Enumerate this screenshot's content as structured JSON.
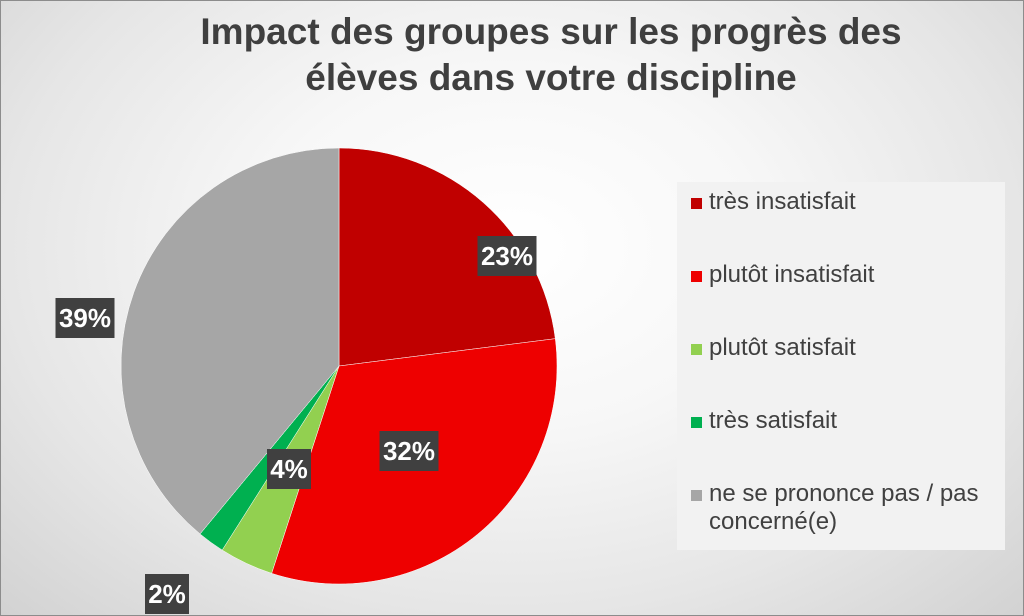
{
  "chart_data": {
    "type": "pie",
    "title_lines": [
      "Impact des groupes sur les progrès des",
      "élèves dans votre discipline"
    ],
    "series": [
      {
        "name": "très insatisfait",
        "value": 23,
        "label": "23%",
        "color": "#c00000"
      },
      {
        "name": "plutôt insatisfait",
        "value": 32,
        "label": "32%",
        "color": "#ee0000"
      },
      {
        "name": "plutôt satisfait",
        "value": 4,
        "label": "4%",
        "color": "#92d050"
      },
      {
        "name": "très satisfait",
        "value": 2,
        "label": "2%",
        "color": "#00b050"
      },
      {
        "name": "ne se prononce pas / pas concerné(e)",
        "value": 39,
        "label": "39%",
        "color": "#a6a6a6"
      }
    ],
    "legend_position": "right",
    "label_box_color": "#404040"
  }
}
